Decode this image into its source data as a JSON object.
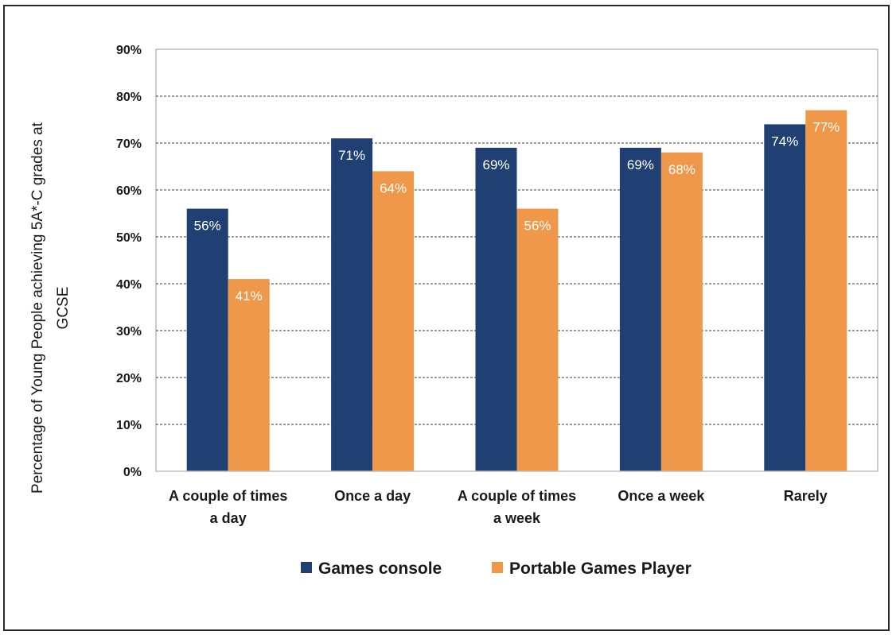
{
  "chart_data": {
    "type": "bar",
    "title": "",
    "xlabel": "",
    "ylabel_lines": [
      "Percentage of Young People achieving 5A*-C grades at",
      "GCSE"
    ],
    "categories": [
      [
        "A couple of times",
        "a day"
      ],
      [
        "Once a day"
      ],
      [
        "A couple of times",
        "a week"
      ],
      [
        "Once a week"
      ],
      [
        "Rarely"
      ]
    ],
    "series": [
      {
        "name": "Games console",
        "color": "#203f73",
        "values": [
          56,
          71,
          69,
          69,
          74
        ],
        "labels": [
          "56%",
          "71%",
          "69%",
          "69%",
          "74%"
        ]
      },
      {
        "name": "Portable Games Player",
        "color": "#f0984a",
        "values": [
          41,
          64,
          56,
          68,
          77
        ],
        "labels": [
          "41%",
          "64%",
          "56%",
          "68%",
          "77%"
        ]
      }
    ],
    "ylim": [
      0,
      90
    ],
    "yticks": [
      0,
      10,
      20,
      30,
      40,
      50,
      60,
      70,
      80,
      90
    ],
    "ytick_labels": [
      "0%",
      "10%",
      "20%",
      "30%",
      "40%",
      "50%",
      "60%",
      "70%",
      "80%",
      "90%"
    ],
    "grid": "dashed horizontal",
    "legend_position": "bottom"
  }
}
